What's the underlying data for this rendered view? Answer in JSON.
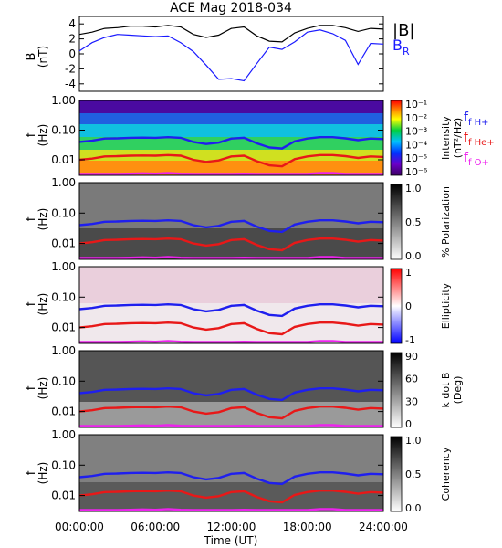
{
  "title": "ACE Mag 2018-034",
  "colors": {
    "total_field": "#000000",
    "radial_field": "#1a1aff",
    "f_h": "#1f1fee",
    "f_he": "#e81818",
    "f_o": "#ee22ee"
  },
  "chart_data": [
    {
      "type": "line",
      "panel": "field",
      "ylabel": "B",
      "yunit": "(nT)",
      "ylim": [
        -5,
        5
      ],
      "yticks": [
        "4",
        "2",
        "0",
        "-2",
        "-4"
      ],
      "x_range_hours": [
        0,
        24
      ],
      "series": [
        {
          "name": "|B|",
          "hours": [
            0,
            1,
            2,
            3,
            4,
            5,
            6,
            7,
            8,
            9,
            10,
            11,
            12,
            13,
            14,
            15,
            16,
            17,
            18,
            19,
            20,
            21,
            22,
            23,
            24
          ],
          "values": [
            2.6,
            2.9,
            3.4,
            3.5,
            3.7,
            3.7,
            3.6,
            3.8,
            3.6,
            2.6,
            2.2,
            2.5,
            3.4,
            3.6,
            2.4,
            1.7,
            1.6,
            2.8,
            3.4,
            3.8,
            3.8,
            3.5,
            3.0,
            3.4,
            3.3
          ]
        },
        {
          "name": "B",
          "subscript": "R",
          "hours": [
            0,
            1,
            2,
            3,
            4,
            5,
            6,
            7,
            8,
            9,
            10,
            11,
            12,
            13,
            14,
            15,
            16,
            17,
            18,
            19,
            20,
            21,
            22,
            23,
            24
          ],
          "values": [
            0.4,
            1.5,
            2.2,
            2.6,
            2.5,
            2.4,
            2.3,
            2.4,
            1.5,
            0.3,
            -1.5,
            -3.4,
            -3.3,
            -3.6,
            -1.3,
            0.9,
            0.6,
            1.6,
            2.9,
            3.2,
            2.7,
            1.8,
            -1.4,
            1.4,
            1.3
          ]
        }
      ]
    },
    {
      "type": "heatmap",
      "panel": "power",
      "ylabel": "f",
      "yunit": "(Hz)",
      "yscale": "log",
      "ylim": [
        0.003,
        1.0
      ],
      "yticks": [
        "1.00",
        "0.10",
        "0.01"
      ],
      "colorbar": {
        "label": "Intensity",
        "unit": "(nT²/Hz)",
        "scale": "log",
        "ticks": [
          "10⁻¹",
          "10⁻²",
          "10⁻³",
          "10⁻⁴",
          "10⁻⁵",
          "10⁻⁶"
        ],
        "palette": "rainbow"
      },
      "legend": [
        "f H+",
        "f He+",
        "f O+"
      ]
    },
    {
      "type": "heatmap",
      "panel": "polarization",
      "ylabel": "f",
      "yunit": "(Hz)",
      "yscale": "log",
      "ylim": [
        0.003,
        1.0
      ],
      "yticks": [
        "1.00",
        "0.10",
        "0.01"
      ],
      "colorbar": {
        "label": "% Polarization",
        "range": [
          0,
          1
        ],
        "ticks": [
          "1.0",
          "0.5",
          "0.0"
        ],
        "palette": "grayscale"
      }
    },
    {
      "type": "heatmap",
      "panel": "ellipticity",
      "ylabel": "f",
      "yunit": "(Hz)",
      "yscale": "log",
      "ylim": [
        0.003,
        1.0
      ],
      "yticks": [
        "1.00",
        "0.10",
        "0.01"
      ],
      "colorbar": {
        "label": "Ellipticity",
        "range": [
          -1,
          1
        ],
        "ticks": [
          "1",
          "0",
          "-1"
        ],
        "palette": "blue-white-red"
      }
    },
    {
      "type": "heatmap",
      "panel": "wave_normal",
      "ylabel": "f",
      "yunit": "(Hz)",
      "yscale": "log",
      "ylim": [
        0.003,
        1.0
      ],
      "yticks": [
        "1.00",
        "0.10",
        "0.01"
      ],
      "colorbar": {
        "label": "k dot B",
        "unit": "(Deg)",
        "range": [
          0,
          90
        ],
        "ticks": [
          "90",
          "60",
          "30",
          "0"
        ],
        "palette": "grayscale"
      }
    },
    {
      "type": "heatmap",
      "panel": "coherency",
      "ylabel": "f",
      "yunit": "(Hz)",
      "yscale": "log",
      "ylim": [
        0.003,
        1.0
      ],
      "yticks": [
        "1.00",
        "0.10",
        "0.01"
      ],
      "colorbar": {
        "label": "Coherency",
        "range": [
          0,
          1
        ],
        "ticks": [
          "1.0",
          "0.5",
          "0.0"
        ],
        "palette": "grayscale"
      }
    }
  ],
  "gyrofrequency_curves": {
    "hours": [
      0,
      1,
      2,
      3,
      4,
      5,
      6,
      7,
      8,
      9,
      10,
      11,
      12,
      13,
      14,
      15,
      16,
      17,
      18,
      19,
      20,
      21,
      22,
      23,
      24
    ],
    "f_h_hz": [
      0.04,
      0.044,
      0.052,
      0.053,
      0.055,
      0.056,
      0.055,
      0.058,
      0.055,
      0.04,
      0.034,
      0.038,
      0.052,
      0.055,
      0.036,
      0.026,
      0.024,
      0.042,
      0.052,
      0.058,
      0.058,
      0.053,
      0.046,
      0.052,
      0.05
    ],
    "f_he_hz": [
      0.01,
      0.011,
      0.013,
      0.0133,
      0.0138,
      0.014,
      0.0138,
      0.0145,
      0.0138,
      0.01,
      0.0085,
      0.0095,
      0.013,
      0.0138,
      0.009,
      0.0065,
      0.006,
      0.0105,
      0.013,
      0.0145,
      0.0145,
      0.0133,
      0.0115,
      0.013,
      0.0125
    ],
    "f_o_hz": [
      0.0025,
      0.0027,
      0.0032,
      0.0033,
      0.0034,
      0.0035,
      0.0034,
      0.0036,
      0.0034,
      0.0025,
      0.0021,
      0.0024,
      0.0032,
      0.0034,
      0.0022,
      0.0016,
      0.0015,
      0.0026,
      0.0032,
      0.0036,
      0.0036,
      0.0033,
      0.0029,
      0.0032,
      0.0031
    ]
  },
  "xaxis": {
    "ticks": [
      "00:00:00",
      "06:00:00",
      "12:00:00",
      "18:00:00",
      "24:00:00"
    ],
    "label": "Time (UT)"
  }
}
